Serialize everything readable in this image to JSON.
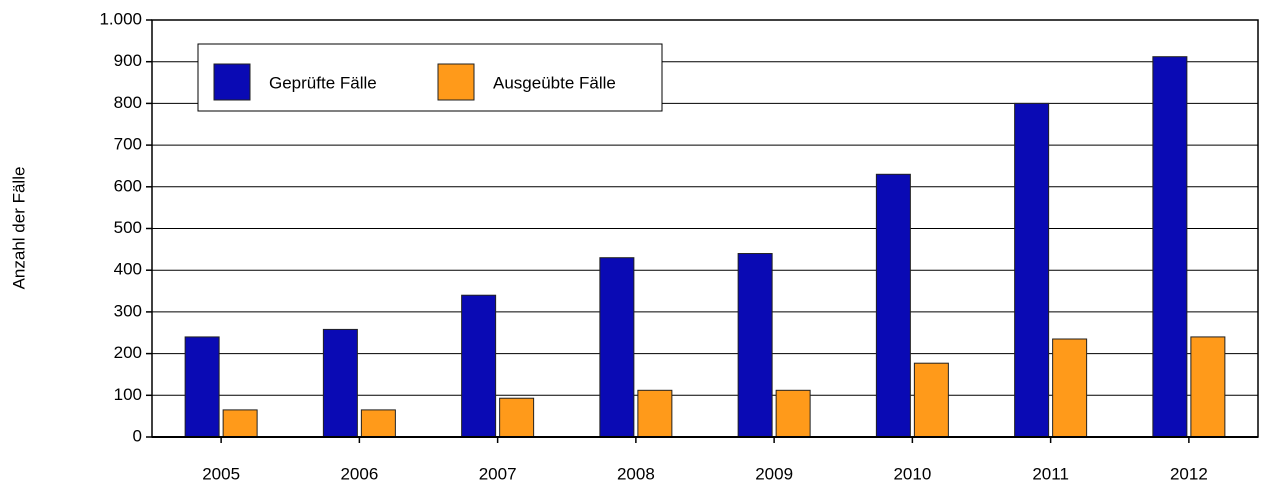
{
  "chart_data": {
    "type": "bar",
    "y_label": "Anzahl der Fälle",
    "categories": [
      "2005",
      "2006",
      "2007",
      "2008",
      "2009",
      "2010",
      "2011",
      "2012"
    ],
    "series": [
      {
        "name": "Geprüfte Fälle",
        "color": "#0a0ab4",
        "values": [
          240,
          258,
          340,
          430,
          440,
          630,
          800,
          912
        ]
      },
      {
        "name": "Ausgeübte Fälle",
        "color": "#ff9a1a",
        "values": [
          65,
          65,
          93,
          112,
          112,
          177,
          235,
          240
        ]
      }
    ],
    "ylim": [
      0,
      1000
    ],
    "yticks": [
      0,
      100,
      200,
      300,
      400,
      500,
      600,
      700,
      800,
      900,
      {
        "value": 1000,
        "label": "1.000"
      }
    ],
    "grid": true,
    "legend": "top-left"
  }
}
